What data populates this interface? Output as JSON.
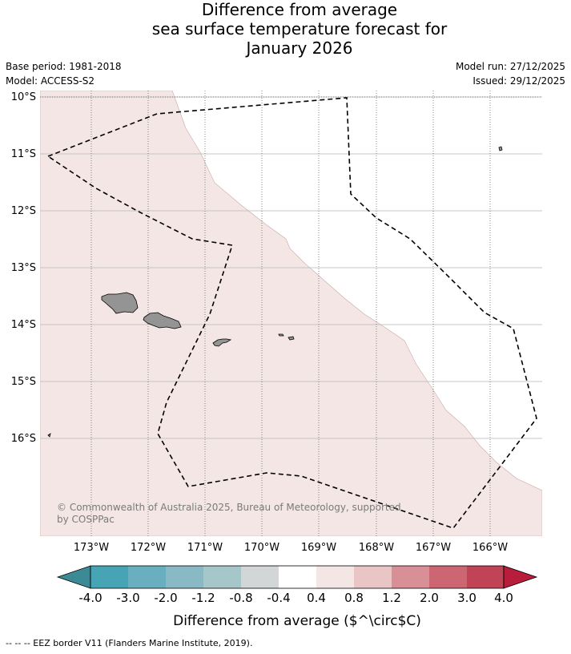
{
  "title": {
    "line1": "Difference from average",
    "line2": "sea surface temperature forecast for",
    "line3": "January 2026"
  },
  "meta": {
    "base_period": "Base period: 1981-2018",
    "model": "Model: ACCESS-S2",
    "model_run": "Model run: 27/12/2025",
    "issued": "Issued: 29/12/2025"
  },
  "map": {
    "lat_labels": [
      "10°S",
      "11°S",
      "12°S",
      "13°S",
      "14°S",
      "15°S",
      "16°S"
    ],
    "lon_labels": [
      "173°W",
      "172°W",
      "171°W",
      "170°W",
      "169°W",
      "168°W",
      "167°W",
      "166°W"
    ],
    "anomaly_fill_color": "#f5e6e6",
    "land_color": "#949494",
    "copyright": "© Commonwealth of Australia 2025, Bureau of Meteorology, supported by COSPPac"
  },
  "colorbar": {
    "labels": [
      "-4.0",
      "-3.0",
      "-2.0",
      "-1.2",
      "-0.8",
      "-0.4",
      "0.4",
      "0.8",
      "1.2",
      "2.0",
      "3.0",
      "4.0"
    ],
    "colors": [
      "#46a4b4",
      "#6aafbf",
      "#89b9c4",
      "#a6c7ca",
      "#d3d6d6",
      "#ffffff",
      "#f5e6e6",
      "#e9c6c5",
      "#d88f95",
      "#cc6672",
      "#c04456"
    ],
    "under_color": "#3b8a96",
    "over_color": "#b81e3c",
    "title": "Difference from average ($^\\circ$C)"
  },
  "footnote": "--  --  -- EEZ border V11 (Flanders Marine Institute, 2019)."
}
